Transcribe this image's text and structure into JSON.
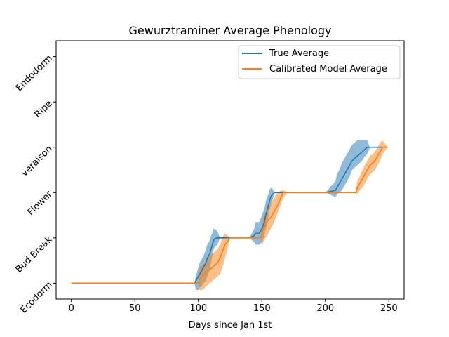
{
  "chart_data": {
    "type": "line",
    "title": "Gewurztraminer Average Phenology",
    "xlabel": "Days since Jan 1st",
    "ylabel": "",
    "xlim": [
      -12,
      262
    ],
    "ylim": [
      -0.35,
      5.35
    ],
    "x_ticks": [
      0,
      50,
      100,
      150,
      200,
      250
    ],
    "y_categories": [
      "Ecodorm",
      "Bud Break",
      "Flower",
      "veraison",
      "Ripe",
      "Endodorm"
    ],
    "legend_position": "upper right",
    "grid": false,
    "series": [
      {
        "name": "True Average",
        "color": "#1f77b4",
        "x": [
          0,
          97,
          98,
          100,
          101,
          103,
          104,
          106,
          107,
          109,
          110,
          111,
          112,
          113,
          115,
          117,
          118,
          125,
          140,
          144,
          145,
          148,
          150,
          152,
          153,
          154,
          155,
          156,
          157,
          158,
          160,
          162,
          165,
          170,
          200,
          208,
          209,
          211,
          213,
          215,
          217,
          219,
          221,
          223,
          225,
          227,
          229,
          231,
          233,
          235,
          245,
          249
        ],
        "y": [
          0,
          0,
          0.05,
          0.15,
          0.2,
          0.3,
          0.35,
          0.45,
          0.55,
          0.65,
          0.75,
          0.85,
          0.95,
          0.98,
          1.0,
          1.0,
          1.0,
          1.0,
          1.0,
          1.05,
          1.1,
          1.1,
          1.2,
          1.35,
          1.5,
          1.6,
          1.7,
          1.8,
          1.9,
          1.95,
          2.0,
          2.0,
          2.0,
          2.0,
          2.0,
          2.05,
          2.1,
          2.2,
          2.3,
          2.4,
          2.5,
          2.6,
          2.7,
          2.75,
          2.8,
          2.85,
          2.9,
          2.95,
          3.0,
          3.0,
          3.0,
          3.0
        ],
        "band_lower": [
          0,
          0,
          -0.15,
          -0.15,
          -0.1,
          -0.05,
          0.0,
          0.05,
          0.15,
          0.3,
          0.45,
          0.6,
          0.75,
          0.8,
          0.85,
          1.0,
          1.0,
          1.0,
          1.0,
          0.9,
          0.85,
          0.85,
          0.9,
          1.05,
          1.2,
          1.3,
          1.45,
          1.6,
          1.7,
          1.8,
          2.0,
          2.0,
          2.0,
          2.0,
          2.0,
          1.9,
          1.95,
          2.0,
          2.05,
          2.15,
          2.25,
          2.35,
          2.5,
          2.55,
          2.6,
          2.65,
          2.7,
          2.8,
          2.85,
          3.0,
          3.0,
          3.0
        ],
        "band_upper": [
          0,
          0,
          0.15,
          0.35,
          0.45,
          0.55,
          0.6,
          0.75,
          0.85,
          0.95,
          1.05,
          1.1,
          1.2,
          1.2,
          1.15,
          1.0,
          1.0,
          1.0,
          1.0,
          1.2,
          1.35,
          1.35,
          1.5,
          1.65,
          1.8,
          1.9,
          1.95,
          2.05,
          2.1,
          2.1,
          2.0,
          2.0,
          2.0,
          2.0,
          2.0,
          2.25,
          2.4,
          2.5,
          2.65,
          2.75,
          2.85,
          2.95,
          3.05,
          3.1,
          3.15,
          3.15,
          3.15,
          3.15,
          3.15,
          3.0,
          3.0,
          3.0
        ]
      },
      {
        "name": "Calibrated Model Average",
        "color": "#ff7f0e",
        "x": [
          0,
          100,
          101,
          103,
          105,
          107,
          109,
          111,
          113,
          115,
          117,
          119,
          121,
          125,
          145,
          149,
          150,
          151,
          153,
          155,
          157,
          159,
          161,
          163,
          165,
          167,
          170,
          224,
          225,
          227,
          229,
          231,
          233,
          235,
          237,
          239,
          241,
          243,
          245,
          249
        ],
        "y": [
          0,
          0,
          0.1,
          0.15,
          0.2,
          0.25,
          0.3,
          0.35,
          0.4,
          0.45,
          0.55,
          0.7,
          0.85,
          1.0,
          1.0,
          1.0,
          1.1,
          1.2,
          1.3,
          1.4,
          1.45,
          1.55,
          1.65,
          1.75,
          1.9,
          2.0,
          2.0,
          2.0,
          2.1,
          2.2,
          2.3,
          2.4,
          2.5,
          2.6,
          2.65,
          2.7,
          2.8,
          2.9,
          3.0,
          3.0
        ],
        "band_lower": [
          0,
          0,
          -0.15,
          -0.15,
          -0.1,
          -0.05,
          0.0,
          0.05,
          0.1,
          0.15,
          0.2,
          0.35,
          0.55,
          1.0,
          1.0,
          1.0,
          0.85,
          0.9,
          1.0,
          1.1,
          1.2,
          1.3,
          1.45,
          1.6,
          1.75,
          1.9,
          2.0,
          2.0,
          1.95,
          2.05,
          2.1,
          2.2,
          2.3,
          2.4,
          2.45,
          2.5,
          2.6,
          2.7,
          2.85,
          3.0
        ],
        "band_upper": [
          0,
          0,
          0.35,
          0.4,
          0.45,
          0.55,
          0.6,
          0.65,
          0.7,
          0.75,
          0.85,
          1.0,
          1.1,
          1.0,
          1.0,
          1.0,
          1.3,
          1.45,
          1.55,
          1.7,
          1.75,
          1.85,
          1.95,
          2.0,
          2.05,
          2.05,
          2.0,
          2.0,
          2.25,
          2.35,
          2.5,
          2.6,
          2.7,
          2.8,
          2.85,
          2.9,
          3.0,
          3.1,
          3.15,
          3.0
        ]
      }
    ]
  }
}
